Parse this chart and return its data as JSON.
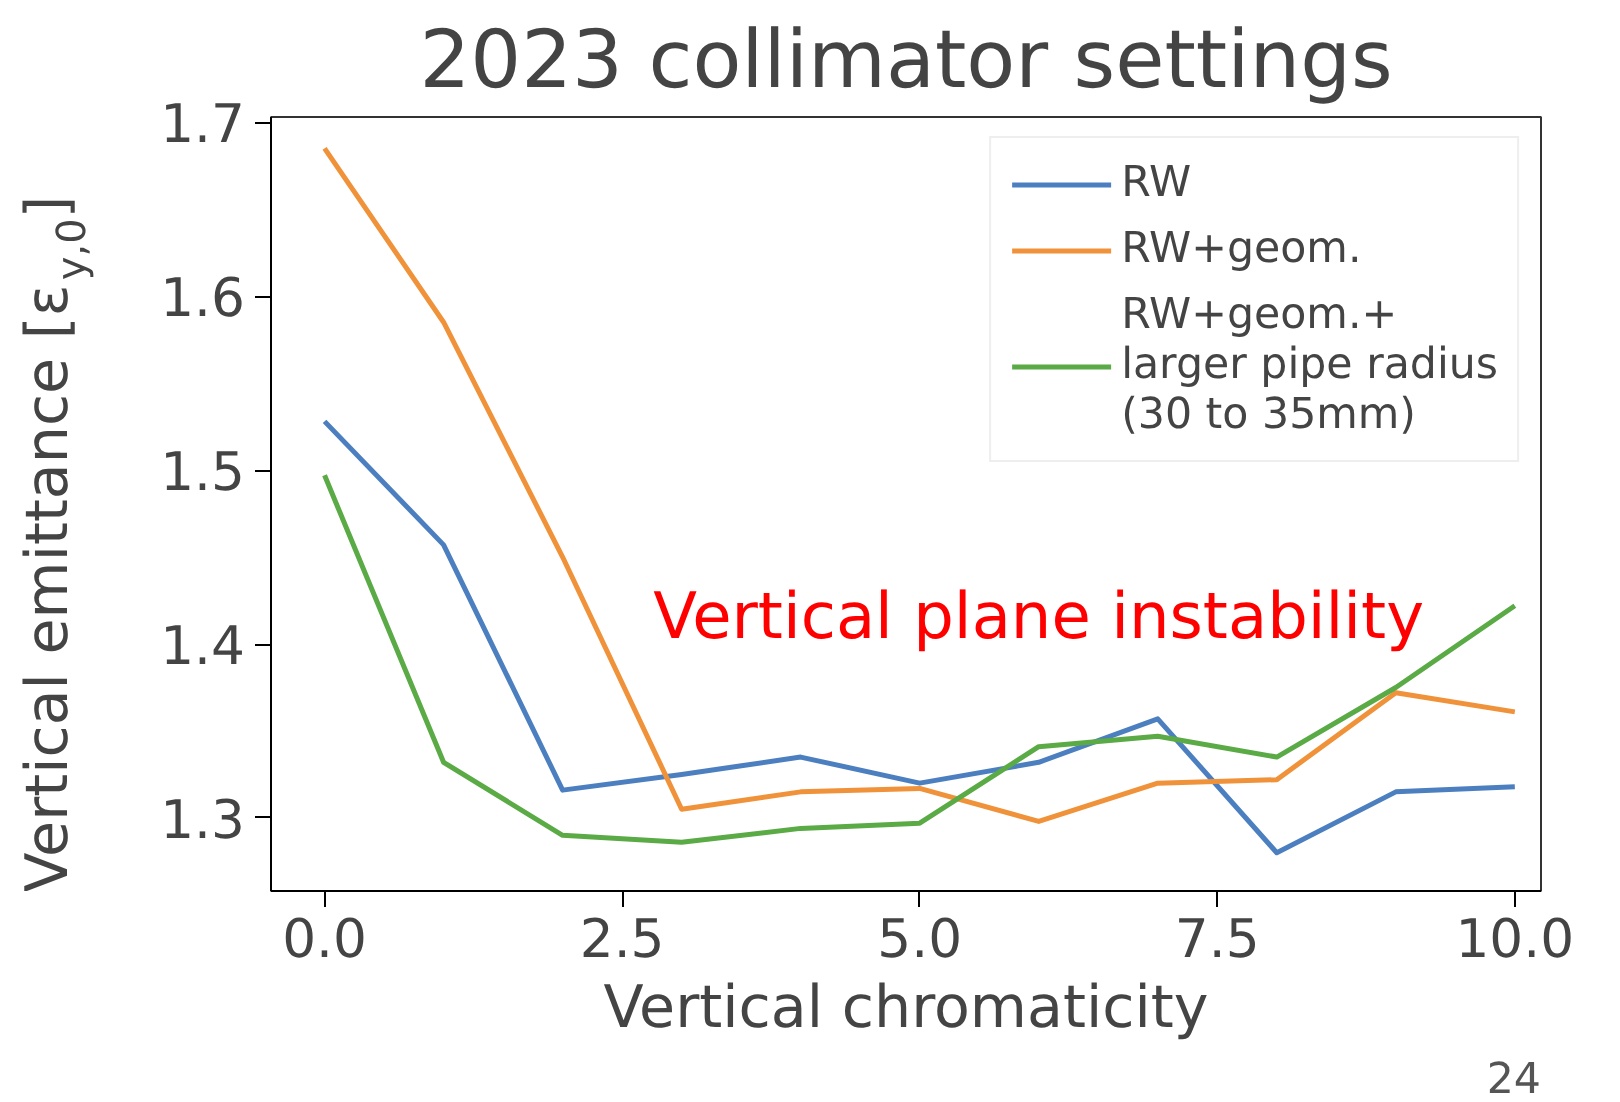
{
  "chart_data": {
    "type": "line",
    "title": "2023 collimator settings",
    "xlabel": "Vertical chromaticity",
    "ylabel": "Vertical emittance [ε$_{y,0}$]",
    "x": [
      0,
      1,
      2,
      3,
      4,
      5,
      6,
      7,
      8,
      9,
      10
    ],
    "series": [
      {
        "name": "RW",
        "color": "#4c7fbf",
        "values": [
          1.528,
          1.457,
          1.316,
          1.325,
          1.335,
          1.32,
          1.332,
          1.357,
          1.28,
          1.315,
          1.318
        ]
      },
      {
        "name": "RW+geom.",
        "color": "#f0923a",
        "values": [
          1.685,
          1.585,
          1.45,
          1.305,
          1.315,
          1.317,
          1.298,
          1.32,
          1.322,
          1.372,
          1.361
        ]
      },
      {
        "name": "RW+geom.+\nlarger pipe radius\n(30 to 35mm)",
        "color": "#5aaa46",
        "values": [
          1.497,
          1.332,
          1.29,
          1.286,
          1.294,
          1.297,
          1.341,
          1.347,
          1.335,
          1.375,
          1.422
        ]
      }
    ],
    "xlim": [
      -0.45,
      10.22
    ],
    "ylim": [
      1.258,
      1.703
    ],
    "xticks": [
      {
        "value": 0,
        "label": "0.0"
      },
      {
        "value": 2.5,
        "label": "2.5"
      },
      {
        "value": 5,
        "label": "5.0"
      },
      {
        "value": 7.5,
        "label": "7.5"
      },
      {
        "value": 10,
        "label": "10.0"
      }
    ],
    "yticks": [
      1.3,
      1.4,
      1.5,
      1.6,
      1.7
    ],
    "grid": false,
    "legend": "top right",
    "line_style": "solid",
    "annotations": [
      "Vertical plane instability",
      "24"
    ]
  }
}
